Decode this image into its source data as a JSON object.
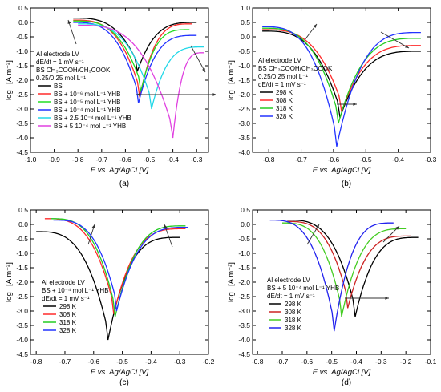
{
  "chart_data": [
    {
      "type": "line",
      "panel_label": "(a)",
      "xlabel": "E vs. Ag/AgCl [V]",
      "ylabel": "log i [A m⁻²]",
      "xlim": [
        -1.0,
        -0.25
      ],
      "ylim": [
        -4.5,
        0.5
      ],
      "xticks": [
        "-1.0",
        "-0.9",
        "-0.8",
        "-0.7",
        "-0.6",
        "-0.5",
        "-0.4",
        "-0.3"
      ],
      "yticks": [
        "0.5",
        "0.0",
        "-0.5",
        "-1.0",
        "-1.5",
        "-2.0",
        "-2.5",
        "-3.0",
        "-3.5",
        "-4.0",
        "-4.5"
      ],
      "grid": false,
      "annotation_lines": [
        "Al electrode LV",
        "dE/dt = 1 mV s⁻¹"
      ],
      "legend_header": [
        "BS CH₃COOH/CH₃COOK",
        "0.25/0.25 mol L⁻¹"
      ],
      "legend_position": "left",
      "series": [
        {
          "name": "BS",
          "color": "#000000",
          "ecorr": -0.55,
          "ymin": -1.7,
          "x_start": -0.82,
          "y_start": 0.15,
          "x_end": -0.3,
          "y_end": 0.0
        },
        {
          "name": "BS + 10⁻⁶ mol L⁻¹ YHB",
          "color": "#ff2a2a",
          "ecorr": -0.54,
          "ymin": -2.6,
          "x_start": -0.82,
          "y_start": 0.08,
          "x_end": -0.32,
          "y_end": -0.05
        },
        {
          "name": "BS + 10⁻⁵ mol L⁻¹ YHB",
          "color": "#22dd22",
          "ecorr": -0.535,
          "ymin": -2.4,
          "x_start": -0.82,
          "y_start": 0.05,
          "x_end": -0.33,
          "y_end": -0.25
        },
        {
          "name": "BS + 10⁻⁴ mol L⁻¹ YHB",
          "color": "#2233ff",
          "ecorr": -0.545,
          "ymin": -2.8,
          "x_start": -0.82,
          "y_start": 0.0,
          "x_end": -0.3,
          "y_end": -0.45
        },
        {
          "name": "BS + 2.5 10⁻⁴ mol L⁻¹ YHB",
          "color": "#22d8e8",
          "ecorr": -0.49,
          "ymin": -3.0,
          "x_start": -0.8,
          "y_start": -0.05,
          "x_end": -0.27,
          "y_end": -0.85
        },
        {
          "name": "BS + 5 10⁻⁴ mol L⁻¹ YHB",
          "color": "#e040e0",
          "ecorr": -0.4,
          "ymin": -4.0,
          "x_start": -0.8,
          "y_start": -0.1,
          "x_end": -0.27,
          "y_end": -1.05
        }
      ]
    },
    {
      "type": "line",
      "panel_label": "(b)",
      "xlabel": "E vs. Ag/AgCl [V]",
      "ylabel": "log i [A m⁻²]",
      "xlim": [
        -0.85,
        -0.3
      ],
      "ylim": [
        -4.0,
        1.0
      ],
      "xticks": [
        "-0.8",
        "-0.7",
        "-0.6",
        "-0.5",
        "-0.4",
        "-0.3"
      ],
      "yticks": [
        "1.0",
        "0.5",
        "0.0",
        "-0.5",
        "-1.0",
        "-1.5",
        "-2.0",
        "-2.5",
        "-3.0",
        "-3.5",
        "-4.0"
      ],
      "grid": false,
      "annotation_lines": [
        "Al electrode LV",
        "BS CH₃COOH/CH₃COOK",
        "0.25/0.25 mol L⁻¹",
        "dE/dt = 1 mV s⁻¹"
      ],
      "legend_position": "left",
      "series": [
        {
          "name": "298 K",
          "color": "#000000",
          "ecorr": -0.58,
          "ymin": -2.8,
          "x_start": -0.82,
          "y_start": 0.2,
          "x_end": -0.33,
          "y_end": -0.5
        },
        {
          "name": "308 K",
          "color": "#ff2a2a",
          "ecorr": -0.575,
          "ymin": -2.6,
          "x_start": -0.82,
          "y_start": 0.25,
          "x_end": -0.33,
          "y_end": -0.3
        },
        {
          "name": "318 K",
          "color": "#22cc22",
          "ecorr": -0.585,
          "ymin": -3.0,
          "x_start": -0.82,
          "y_start": 0.3,
          "x_end": -0.33,
          "y_end": -0.05
        },
        {
          "name": "328 K",
          "color": "#2233ff",
          "ecorr": -0.59,
          "ymin": -3.8,
          "x_start": -0.82,
          "y_start": 0.35,
          "x_end": -0.33,
          "y_end": 0.15
        }
      ]
    },
    {
      "type": "line",
      "panel_label": "(c)",
      "xlabel": "E vs. Ag/AgCl [V]",
      "ylabel": "log i [A m⁻²]",
      "xlim": [
        -0.82,
        -0.2
      ],
      "ylim": [
        -4.5,
        0.5
      ],
      "xticks": [
        "-0.8",
        "-0.7",
        "-0.6",
        "-0.5",
        "-0.4",
        "-0.3",
        "-0.2"
      ],
      "yticks": [
        "0.5",
        "0.0",
        "-0.5",
        "-1.0",
        "-1.5",
        "-2.0",
        "-2.5",
        "-3.0",
        "-3.5",
        "-4.0",
        "-4.5"
      ],
      "grid": false,
      "annotation_lines": [
        "Al electrode LV",
        "BS + 10⁻⁴ mol L⁻¹ YHB",
        "dE/dt = 1 mV s⁻¹"
      ],
      "legend_position": "bottom-left",
      "series": [
        {
          "name": "298 K",
          "color": "#000000",
          "ecorr": -0.55,
          "ymin": -4.0,
          "x_start": -0.8,
          "y_start": -0.25,
          "x_end": -0.3,
          "y_end": -0.45
        },
        {
          "name": "308 K",
          "color": "#ff2a2a",
          "ecorr": -0.53,
          "ymin": -3.1,
          "x_start": -0.77,
          "y_start": 0.2,
          "x_end": -0.28,
          "y_end": -0.15
        },
        {
          "name": "318 K",
          "color": "#22cc22",
          "ecorr": -0.525,
          "ymin": -3.2,
          "x_start": -0.75,
          "y_start": 0.2,
          "x_end": -0.28,
          "y_end": -0.05
        },
        {
          "name": "328 K",
          "color": "#2233ff",
          "ecorr": -0.52,
          "ymin": -3.0,
          "x_start": -0.74,
          "y_start": 0.15,
          "x_end": -0.27,
          "y_end": -0.1
        }
      ]
    },
    {
      "type": "line",
      "panel_label": "(d)",
      "xlabel": "E vs. Ag/AgCl [V]",
      "ylabel": "log i [A m⁻²]",
      "xlim": [
        -0.82,
        -0.1
      ],
      "ylim": [
        -4.5,
        0.5
      ],
      "xticks": [
        "-0.8",
        "-0.7",
        "-0.6",
        "-0.5",
        "-0.4",
        "-0.3",
        "-0.2",
        "-0.1"
      ],
      "yticks": [
        "0.5",
        "0.0",
        "-0.5",
        "-1.0",
        "-1.5",
        "-2.0",
        "-2.5",
        "-3.0",
        "-3.5",
        "-4.0",
        "-4.5"
      ],
      "grid": false,
      "annotation_lines": [
        "Al electrode LV",
        "BS + 5 10⁻⁴ mol L⁻¹ YHB",
        "dE/dt = 1 mV s⁻¹"
      ],
      "legend_position": "bottom-left",
      "series": [
        {
          "name": "298 K",
          "color": "#000000",
          "ecorr": -0.405,
          "ymin": -3.2,
          "x_start": -0.68,
          "y_start": 0.15,
          "x_end": -0.15,
          "y_end": -0.45
        },
        {
          "name": "308 K",
          "color": "#cc2222",
          "ecorr": -0.435,
          "ymin": -2.9,
          "x_start": -0.68,
          "y_start": 0.1,
          "x_end": -0.18,
          "y_end": -0.4
        },
        {
          "name": "318 K",
          "color": "#44cc22",
          "ecorr": -0.46,
          "ymin": -3.2,
          "x_start": -0.7,
          "y_start": 0.05,
          "x_end": -0.2,
          "y_end": -0.15
        },
        {
          "name": "328 K",
          "color": "#2222ee",
          "ecorr": -0.49,
          "ymin": -3.7,
          "x_start": -0.75,
          "y_start": 0.15,
          "x_end": -0.25,
          "y_end": 0.05
        }
      ]
    }
  ]
}
